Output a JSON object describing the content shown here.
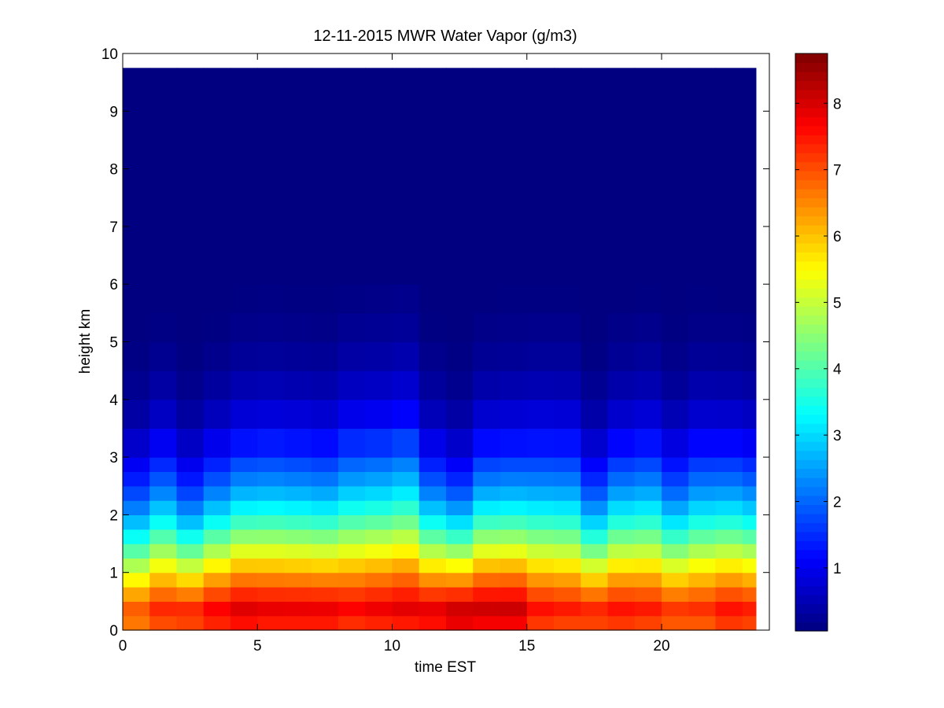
{
  "chart_data": {
    "type": "heatmap",
    "title": "12-11-2015 MWR Water Vapor (g/m3)",
    "xlabel": "time EST",
    "ylabel": "height km",
    "xlim": [
      0,
      24
    ],
    "ylim": [
      0,
      10
    ],
    "x_ticks": [
      "0",
      "5",
      "10",
      "15",
      "20"
    ],
    "y_ticks": [
      "0",
      "1",
      "2",
      "3",
      "4",
      "5",
      "6",
      "7",
      "8",
      "9",
      "10"
    ],
    "colormap": "jet",
    "colorbar": {
      "range": [
        0.05,
        8.75
      ],
      "ticks": [
        "1",
        "2",
        "3",
        "4",
        "5",
        "6",
        "7",
        "8"
      ]
    },
    "data_extent": {
      "x": [
        0,
        23.5
      ],
      "y": [
        0,
        9.75
      ]
    },
    "time_hours": [
      0,
      1,
      2,
      3,
      4,
      5,
      6,
      7,
      8,
      9,
      10,
      11,
      12,
      13,
      14,
      15,
      16,
      17,
      18,
      19,
      20,
      21,
      22,
      23
    ],
    "height_km": [
      0,
      0.25,
      0.5,
      0.75,
      1.0,
      1.25,
      1.5,
      1.75,
      2.0,
      2.25,
      2.5,
      2.75,
      3.0,
      3.5,
      4.0,
      4.5,
      5.0,
      5.5,
      6.0,
      7.0,
      8.0,
      9.0
    ],
    "surface_vapor_gm3": [
      7.4,
      7.8,
      7.9,
      8.2,
      8.4,
      8.3,
      8.3,
      8.3,
      8.1,
      8.2,
      8.3,
      8.4,
      8.7,
      8.6,
      8.6,
      8.0,
      7.9,
      7.9,
      8.0,
      7.9,
      7.7,
      7.7,
      8.0,
      7.9
    ],
    "scale_height_km": [
      1.4,
      1.55,
      1.35,
      1.5,
      1.62,
      1.65,
      1.63,
      1.6,
      1.73,
      1.75,
      1.8,
      1.48,
      1.35,
      1.58,
      1.6,
      1.65,
      1.65,
      1.4,
      1.6,
      1.65,
      1.48,
      1.62,
      1.6,
      1.55
    ]
  }
}
